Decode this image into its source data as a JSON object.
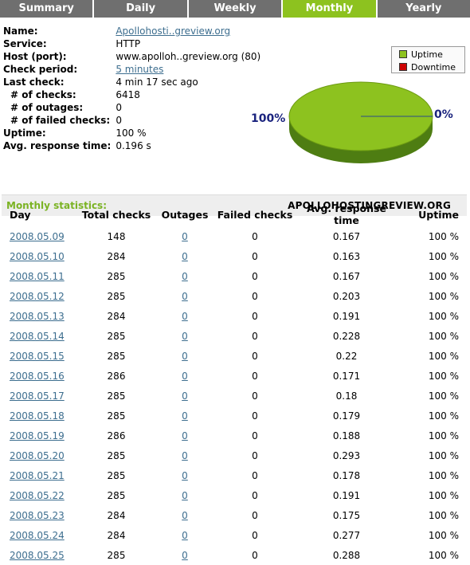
{
  "tabs": [
    {
      "label": "Summary",
      "active": false
    },
    {
      "label": "Daily",
      "active": false
    },
    {
      "label": "Weekly",
      "active": false
    },
    {
      "label": "Monthly",
      "active": true
    },
    {
      "label": "Yearly",
      "active": false
    }
  ],
  "info": {
    "name_label": "Name:",
    "name_value": "Apollohosti..greview.org",
    "service_label": "Service:",
    "service_value": "HTTP",
    "host_label": "Host (port):",
    "host_value": "www.apolloh..greview.org (80)",
    "period_label": "Check period:",
    "period_value": "5 minutes",
    "lastcheck_label": "Last check:",
    "lastcheck_value": "4 min 17 sec ago",
    "checks_label": "# of checks:",
    "checks_value": "6418",
    "outages_label": "# of outages:",
    "outages_value": "0",
    "failed_label": "# of failed checks:",
    "failed_value": "0",
    "uptime_label": "Uptime:",
    "uptime_value": "100 %",
    "art_label": "Avg. response time:",
    "art_value": "0.196 s"
  },
  "legend": {
    "uptime": "Uptime",
    "downtime": "Downtime"
  },
  "pie": {
    "uptime_pct": "100%",
    "downtime_pct": "0%",
    "uptime_color": "#8dc21f",
    "downtime_color": "#cc0000"
  },
  "stats": {
    "title": "Monthly statistics:",
    "site": "APOLLOHOSTINGREVIEW.ORG",
    "headers": {
      "day": "Day",
      "total": "Total checks",
      "outages": "Outages",
      "failed": "Failed checks",
      "art": "Avg. response time",
      "uptime": "Uptime"
    },
    "rows": [
      {
        "day": "2008.05.09",
        "total": "148",
        "outages": "0",
        "failed": "0",
        "art": "0.167",
        "uptime": "100 %"
      },
      {
        "day": "2008.05.10",
        "total": "284",
        "outages": "0",
        "failed": "0",
        "art": "0.163",
        "uptime": "100 %"
      },
      {
        "day": "2008.05.11",
        "total": "285",
        "outages": "0",
        "failed": "0",
        "art": "0.167",
        "uptime": "100 %"
      },
      {
        "day": "2008.05.12",
        "total": "285",
        "outages": "0",
        "failed": "0",
        "art": "0.203",
        "uptime": "100 %"
      },
      {
        "day": "2008.05.13",
        "total": "284",
        "outages": "0",
        "failed": "0",
        "art": "0.191",
        "uptime": "100 %"
      },
      {
        "day": "2008.05.14",
        "total": "285",
        "outages": "0",
        "failed": "0",
        "art": "0.228",
        "uptime": "100 %"
      },
      {
        "day": "2008.05.15",
        "total": "285",
        "outages": "0",
        "failed": "0",
        "art": "0.22",
        "uptime": "100 %"
      },
      {
        "day": "2008.05.16",
        "total": "286",
        "outages": "0",
        "failed": "0",
        "art": "0.171",
        "uptime": "100 %"
      },
      {
        "day": "2008.05.17",
        "total": "285",
        "outages": "0",
        "failed": "0",
        "art": "0.18",
        "uptime": "100 %"
      },
      {
        "day": "2008.05.18",
        "total": "285",
        "outages": "0",
        "failed": "0",
        "art": "0.179",
        "uptime": "100 %"
      },
      {
        "day": "2008.05.19",
        "total": "286",
        "outages": "0",
        "failed": "0",
        "art": "0.188",
        "uptime": "100 %"
      },
      {
        "day": "2008.05.20",
        "total": "285",
        "outages": "0",
        "failed": "0",
        "art": "0.293",
        "uptime": "100 %"
      },
      {
        "day": "2008.05.21",
        "total": "285",
        "outages": "0",
        "failed": "0",
        "art": "0.178",
        "uptime": "100 %"
      },
      {
        "day": "2008.05.22",
        "total": "285",
        "outages": "0",
        "failed": "0",
        "art": "0.191",
        "uptime": "100 %"
      },
      {
        "day": "2008.05.23",
        "total": "284",
        "outages": "0",
        "failed": "0",
        "art": "0.175",
        "uptime": "100 %"
      },
      {
        "day": "2008.05.24",
        "total": "284",
        "outages": "0",
        "failed": "0",
        "art": "0.277",
        "uptime": "100 %"
      },
      {
        "day": "2008.05.25",
        "total": "285",
        "outages": "0",
        "failed": "0",
        "art": "0.288",
        "uptime": "100 %"
      }
    ]
  }
}
